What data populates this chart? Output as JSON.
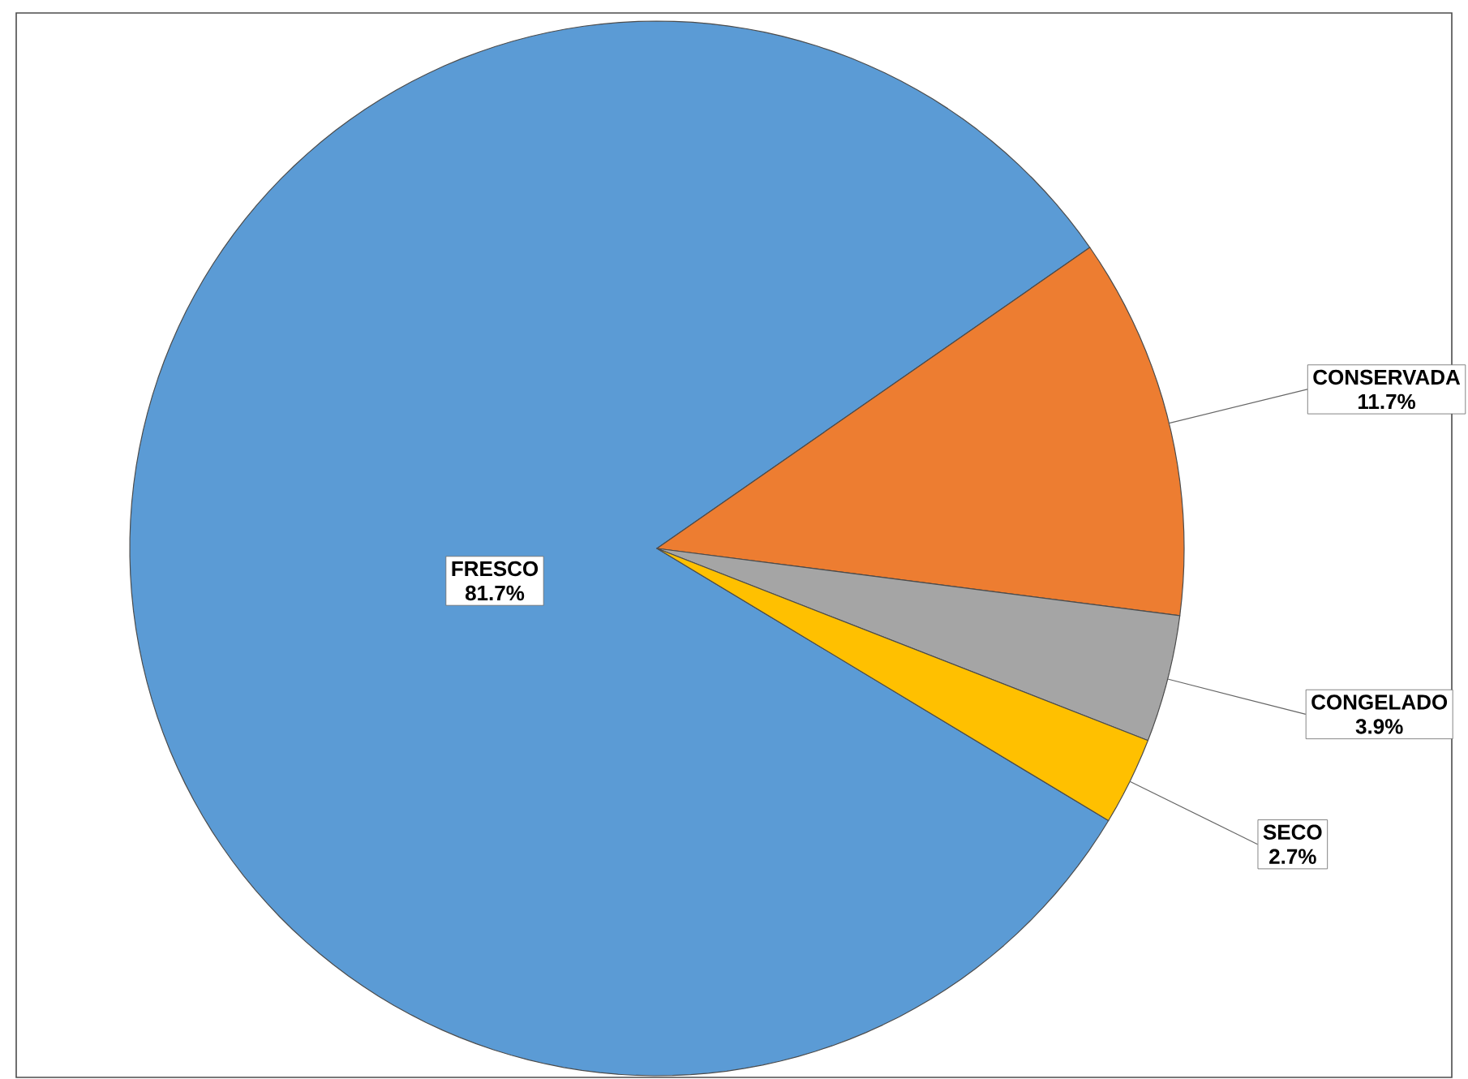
{
  "chart_data": {
    "type": "pie",
    "categories": [
      "FRESCO",
      "CONSERVADA",
      "CONGELADO",
      "SECO"
    ],
    "values": [
      81.7,
      11.7,
      3.9,
      2.7
    ],
    "colors": [
      "#5b9bd5",
      "#ed7d31",
      "#a5a5a5",
      "#ffc000"
    ],
    "value_labels": [
      "81.7%",
      "11.7%",
      "3.9%",
      "2.7%"
    ]
  }
}
